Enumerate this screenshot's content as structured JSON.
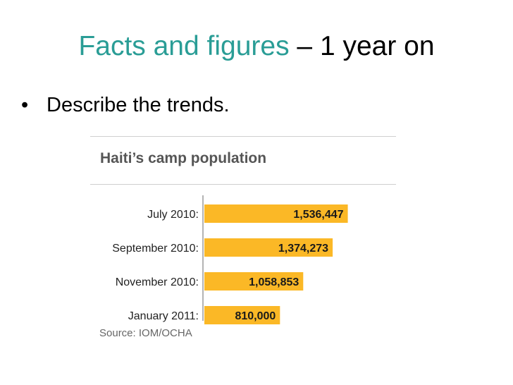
{
  "slide": {
    "title_accent": "Facts and figures",
    "title_rest": " – 1 year on",
    "bullet_symbol": "•",
    "bullet_text": "Describe the trends."
  },
  "colors": {
    "accent": "#2a9d96",
    "bar": "#fbb826"
  },
  "chart_data": {
    "type": "bar",
    "orientation": "horizontal",
    "title": "Haiti’s camp population",
    "categories": [
      "July 2010:",
      "September 2010:",
      "November 2010:",
      "January 2011:"
    ],
    "values": [
      1536447,
      1374273,
      1058853,
      810000
    ],
    "value_labels": [
      "1,536,447",
      "1,374,273",
      "1,058,853",
      "810,000"
    ],
    "source": "Source: IOM/OCHA",
    "xlim": [
      0,
      1600000
    ],
    "grid": false,
    "legend": "none"
  }
}
